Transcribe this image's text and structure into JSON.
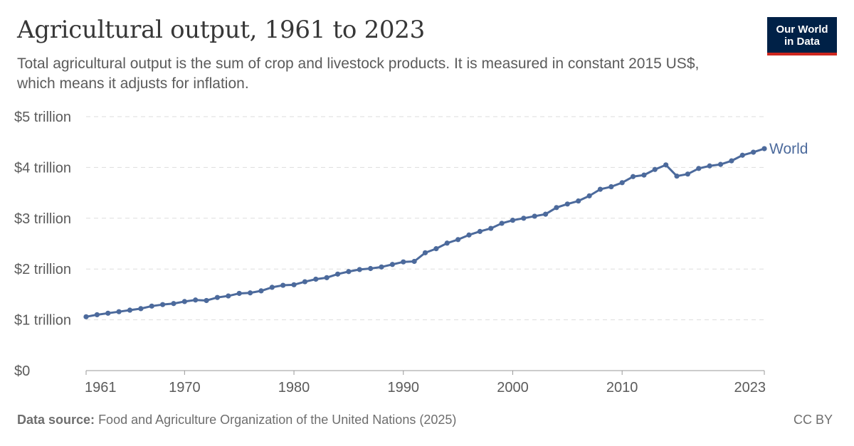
{
  "header": {
    "title": "Agricultural output, 1961 to 2023",
    "subtitle": "Total agricultural output is the sum of crop and livestock products. It is measured in constant 2015 US$, which means it adjusts for inflation."
  },
  "logo": {
    "line1": "Our World",
    "line2": "in Data"
  },
  "footer": {
    "source_label": "Data source:",
    "source_text": "Food and Agriculture Organization of the United Nations (2025)",
    "license": "CC BY"
  },
  "colors": {
    "series": "#4c6a9c",
    "grid": "#dddddd",
    "axis": "#999999"
  },
  "chart_data": {
    "type": "line",
    "title": "Agricultural output, 1961 to 2023",
    "ylim": [
      0,
      5
    ],
    "xlim": [
      1961,
      2023
    ],
    "y_ticks": [
      {
        "value": 0,
        "label": "$0"
      },
      {
        "value": 1,
        "label": "$1 trillion"
      },
      {
        "value": 2,
        "label": "$2 trillion"
      },
      {
        "value": 3,
        "label": "$3 trillion"
      },
      {
        "value": 4,
        "label": "$4 trillion"
      },
      {
        "value": 5,
        "label": "$5 trillion"
      }
    ],
    "x_ticks": [
      {
        "value": 1961,
        "label": "1961"
      },
      {
        "value": 1970,
        "label": "1970"
      },
      {
        "value": 1980,
        "label": "1980"
      },
      {
        "value": 1990,
        "label": "1990"
      },
      {
        "value": 2000,
        "label": "2000"
      },
      {
        "value": 2010,
        "label": "2010"
      },
      {
        "value": 2023,
        "label": "2023"
      }
    ],
    "grid": true,
    "series": [
      {
        "name": "World",
        "x": [
          1961,
          1962,
          1963,
          1964,
          1965,
          1966,
          1967,
          1968,
          1969,
          1970,
          1971,
          1972,
          1973,
          1974,
          1975,
          1976,
          1977,
          1978,
          1979,
          1980,
          1981,
          1982,
          1983,
          1984,
          1985,
          1986,
          1987,
          1988,
          1989,
          1990,
          1991,
          1992,
          1993,
          1994,
          1995,
          1996,
          1997,
          1998,
          1999,
          2000,
          2001,
          2002,
          2003,
          2004,
          2005,
          2006,
          2007,
          2008,
          2009,
          2010,
          2011,
          2012,
          2013,
          2014,
          2015,
          2016,
          2017,
          2018,
          2019,
          2020,
          2021,
          2022,
          2023
        ],
        "values": [
          1.06,
          1.1,
          1.13,
          1.16,
          1.19,
          1.22,
          1.27,
          1.3,
          1.32,
          1.36,
          1.39,
          1.38,
          1.44,
          1.47,
          1.52,
          1.53,
          1.57,
          1.64,
          1.68,
          1.69,
          1.75,
          1.8,
          1.83,
          1.9,
          1.95,
          1.99,
          2.01,
          2.04,
          2.09,
          2.14,
          2.15,
          2.32,
          2.4,
          2.51,
          2.58,
          2.67,
          2.74,
          2.8,
          2.9,
          2.96,
          3.0,
          3.04,
          3.08,
          3.21,
          3.28,
          3.34,
          3.44,
          3.57,
          3.62,
          3.7,
          3.82,
          3.85,
          3.96,
          4.05,
          3.83,
          3.87,
          3.98,
          4.03,
          4.06,
          4.13,
          4.24,
          4.3,
          4.37
        ]
      }
    ]
  }
}
